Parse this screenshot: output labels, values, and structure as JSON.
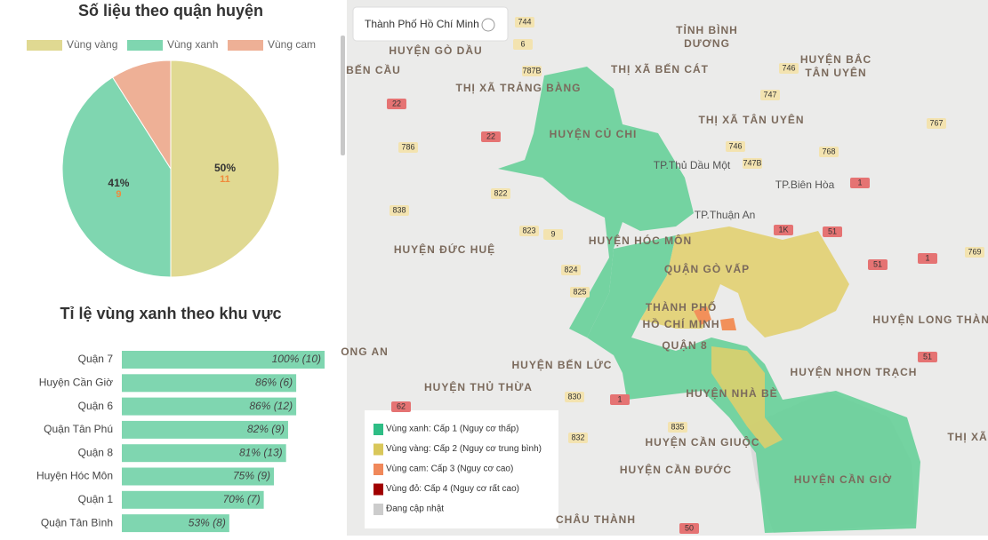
{
  "chart_data": [
    {
      "type": "pie",
      "title": "Số liệu theo quận huyện",
      "categories": [
        "Vùng vàng",
        "Vùng xanh",
        "Vùng cam"
      ],
      "values": [
        50,
        41,
        9
      ],
      "value_labels": [
        "50%",
        "41%",
        null
      ],
      "counts": [
        11,
        9,
        null
      ],
      "colors": [
        "#e0d992",
        "#7fd6b0",
        "#eeb096"
      ],
      "legend": "top"
    },
    {
      "type": "hbar",
      "title": "Tỉ lệ vùng xanh theo khu vực",
      "categories": [
        "Quận 7",
        "Huyện Cần Giờ",
        "Quận 6",
        "Quận Tân Phú",
        "Quận 8",
        "Huyện Hóc Môn",
        "Quận 1",
        "Quận Tân Bình"
      ],
      "values": [
        100,
        86,
        86,
        82,
        81,
        75,
        70,
        53
      ],
      "value_labels": [
        "100% (10)",
        "86% (6)",
        "86% (12)",
        "82% (9)",
        "81% (13)",
        "75% (9)",
        "70% (7)",
        "53% (8)"
      ],
      "color": "#7fd6b0",
      "xlim": [
        0,
        100
      ]
    }
  ],
  "map": {
    "dropdown": "Thành Phố Hồ Chí Minh",
    "labels": [
      "TỈNH BÌNH",
      "DƯƠNG",
      "HUYỆN GÒ DẦU",
      "BẾN CẦU",
      "THỊ XÃ BẾN CÁT",
      "THỊ XÃ TRẢNG BÀNG",
      "HUYỆN BẮC",
      "TÂN UYÊN",
      "THỊ XÃ TÂN UYÊN",
      "HUYỆN CỦ CHI",
      "TP.Thủ Dầu Một",
      "TP.Biên Hòa",
      "TP.Thuận An",
      "HUYỆN HÓC MÔN",
      "HUYỆN ĐỨC HUỆ",
      "QUẬN GÒ VẤP",
      "THÀNH PHỐ",
      "HỒ CHÍ MINH",
      "QUẬN 8",
      "HUYỆN LONG THÀNH",
      "ONG AN",
      "HUYỆN BẾN LỨC",
      "HUYỆN NHƠN TRẠCH",
      "HUYỆN THỦ THỪA",
      "HUYỆN NHÀ BÈ",
      "HUYỆN CẦN GIUỘC",
      "HUYỆN CẦN ĐƯỚC",
      "HUYỆN CẦN GIỜ",
      "CHÂU THÀNH",
      "THỊ XÃ"
    ],
    "roads": [
      "744",
      "6",
      "787B",
      "22",
      "786",
      "22",
      "822",
      "838",
      "823",
      "9",
      "824",
      "825",
      "830",
      "832",
      "835",
      "62",
      "1",
      "1",
      "51",
      "51",
      "51",
      "746",
      "747",
      "746",
      "747B",
      "768",
      "767",
      "769",
      "1K",
      "1",
      "50"
    ],
    "legend": [
      "Vùng xanh: Cấp 1 (Nguy cơ thấp)",
      "Vùng vàng: Cấp 2 (Nguy cơ trung bình)",
      "Vùng cam: Cấp 3 (Nguy cơ cao)",
      "Vùng đỏ: Cấp 4 (Nguy cơ rất cao)",
      "Đang cập nhật"
    ]
  }
}
